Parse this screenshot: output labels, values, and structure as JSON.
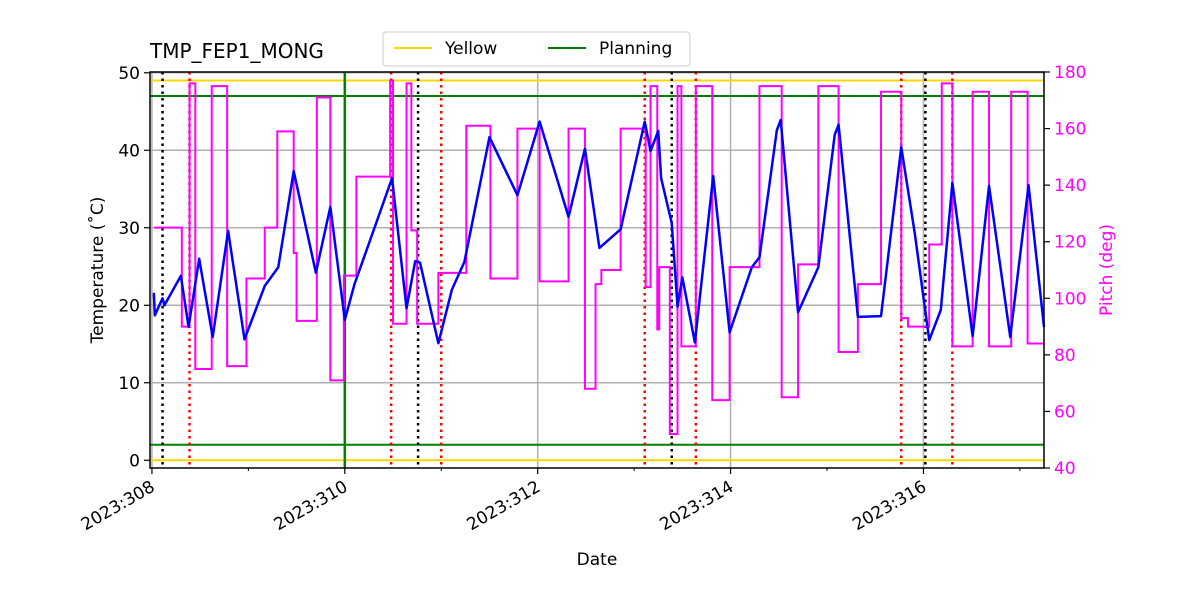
{
  "chart_data": {
    "type": "line",
    "title": "TMP_FEP1_MONG",
    "xlabel": "Date",
    "ylabel": "Temperature (˚C)",
    "y2label": "Pitch (deg)",
    "xlim": [
      307.98,
      317.25
    ],
    "ylim": [
      -1,
      50.1
    ],
    "y2lim": [
      40,
      180
    ],
    "grid": true,
    "legend_placement": "top-center",
    "x_ticks": [
      308,
      310,
      312,
      314,
      316
    ],
    "x_tick_labels": [
      "2023:308",
      "2023:310",
      "2023:312",
      "2023:314",
      "2023:316"
    ],
    "y_ticks": [
      0,
      10,
      20,
      30,
      40,
      50
    ],
    "y2_ticks": [
      40,
      60,
      80,
      100,
      120,
      140,
      160,
      180
    ],
    "legend": [
      {
        "label": "Yellow",
        "color": "#ffd700"
      },
      {
        "label": "Planning",
        "color": "#008000"
      }
    ],
    "limit_lines": [
      {
        "legend": "Yellow",
        "values": [
          49,
          0
        ],
        "color": "#ffd700"
      },
      {
        "legend": "Planning",
        "values": [
          47,
          2
        ],
        "color": "#008000"
      }
    ],
    "planning_vertical_line": 310.0,
    "black_dotted_lines": [
      308.11,
      310.76,
      313.39,
      316.02
    ],
    "red_dotted_lines": [
      308.39,
      310.48,
      311.0,
      313.11,
      313.64,
      315.77,
      316.3
    ],
    "temperature": {
      "color": "#0000ff",
      "x": [
        308.02,
        308.03,
        308.11,
        308.13,
        308.3,
        308.38,
        308.49,
        308.63,
        308.79,
        308.96,
        309.17,
        309.31,
        309.47,
        309.7,
        309.85,
        310.0,
        310.1,
        310.49,
        310.64,
        310.73,
        310.78,
        310.97,
        311.11,
        311.24,
        311.5,
        311.79,
        312.02,
        312.32,
        312.49,
        312.64,
        312.86,
        313.11,
        313.17,
        313.25,
        313.28,
        313.39,
        313.45,
        313.5,
        313.63,
        313.82,
        313.99,
        314.22,
        314.3,
        314.48,
        314.52,
        314.7,
        314.91,
        315.08,
        315.12,
        315.32,
        315.56,
        315.77,
        315.91,
        316.06,
        316.18,
        316.3,
        316.51,
        316.68,
        316.9,
        317.09,
        317.25
      ],
      "y": [
        21.6,
        18.7,
        20.9,
        20.0,
        23.8,
        17.2,
        26.0,
        15.9,
        29.6,
        15.6,
        22.5,
        24.9,
        37.3,
        24.2,
        32.7,
        18.1,
        22.7,
        36.4,
        19.6,
        25.7,
        25.5,
        15.1,
        22.0,
        25.6,
        41.7,
        34.2,
        43.7,
        31.4,
        40.2,
        27.4,
        29.8,
        43.7,
        39.9,
        42.5,
        36.4,
        30.6,
        19.8,
        23.6,
        15.2,
        36.7,
        16.5,
        24.9,
        26.2,
        42.6,
        43.9,
        19.1,
        24.9,
        42.0,
        43.3,
        18.5,
        18.6,
        40.4,
        29.3,
        15.5,
        19.4,
        35.8,
        16.0,
        35.4,
        15.9,
        35.5,
        17.2
      ]
    },
    "pitch_steps": {
      "color": "#ff00ff",
      "x": [
        308.02,
        308.31,
        308.39,
        308.45,
        308.62,
        308.78,
        308.98,
        309.17,
        309.3,
        309.47,
        309.5,
        309.71,
        309.85,
        309.99,
        310.12,
        310.47,
        310.5,
        310.64,
        310.69,
        310.75,
        310.97,
        311.26,
        311.51,
        311.79,
        312.02,
        312.32,
        312.49,
        312.6,
        312.66,
        312.86,
        313.12,
        313.17,
        313.24,
        313.26,
        313.37,
        313.45,
        313.49,
        313.64,
        313.81,
        313.99,
        314.3,
        314.53,
        314.7,
        314.91,
        315.12,
        315.32,
        315.56,
        315.77,
        315.84,
        316.06,
        316.19,
        316.3,
        316.51,
        316.68,
        316.91,
        317.08
      ],
      "y": [
        125,
        90,
        176,
        75,
        175,
        76,
        107,
        125,
        159,
        116,
        92,
        171,
        71,
        108,
        143,
        177,
        91,
        176,
        124,
        91,
        109,
        161,
        107,
        160,
        106,
        160,
        68,
        105,
        110,
        160,
        104,
        175,
        89,
        111,
        52,
        175,
        83,
        175,
        64,
        111,
        175,
        65,
        112,
        175,
        81,
        105,
        173,
        93,
        90,
        119,
        176,
        83,
        173,
        83,
        173,
        84
      ]
    }
  }
}
